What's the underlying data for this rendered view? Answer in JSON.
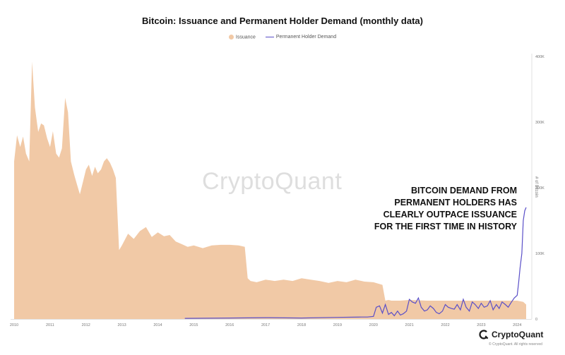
{
  "chart_data": {
    "type": "area",
    "title": "Bitcoin: Issuance and Permanent Holder Demand (monthly data)",
    "ylabel": "# of Bitcoin",
    "ylim": [
      0,
      400000
    ],
    "xlim": [
      2010.0,
      2024.25
    ],
    "yticks": [
      {
        "value": 0,
        "label": "0"
      },
      {
        "value": 100000,
        "label": "100K"
      },
      {
        "value": 200000,
        "label": "200K"
      },
      {
        "value": 300000,
        "label": "300K"
      },
      {
        "value": 400000,
        "label": "400K"
      }
    ],
    "xticks": [
      {
        "value": 2010,
        "label": "2010"
      },
      {
        "value": 2011,
        "label": "2011"
      },
      {
        "value": 2012,
        "label": "2012"
      },
      {
        "value": 2013,
        "label": "2013"
      },
      {
        "value": 2014,
        "label": "2014"
      },
      {
        "value": 2015,
        "label": "2015"
      },
      {
        "value": 2016,
        "label": "2016"
      },
      {
        "value": 2017,
        "label": "2017"
      },
      {
        "value": 2018,
        "label": "2018"
      },
      {
        "value": 2019,
        "label": "2019"
      },
      {
        "value": 2020,
        "label": "2020"
      },
      {
        "value": 2021,
        "label": "2021"
      },
      {
        "value": 2022,
        "label": "2022"
      },
      {
        "value": 2023,
        "label": "2023"
      },
      {
        "value": 2024,
        "label": "2024"
      }
    ],
    "grid": false,
    "legend_position": "top-center",
    "series": [
      {
        "name": "Issuance",
        "kind": "area",
        "color": "#f1c9a6",
        "x": [
          2010.0,
          2010.08,
          2010.17,
          2010.25,
          2010.33,
          2010.42,
          2010.5,
          2010.58,
          2010.67,
          2010.75,
          2010.83,
          2010.92,
          2011.0,
          2011.08,
          2011.17,
          2011.25,
          2011.33,
          2011.42,
          2011.5,
          2011.58,
          2011.67,
          2011.75,
          2011.83,
          2011.92,
          2012.0,
          2012.08,
          2012.17,
          2012.25,
          2012.33,
          2012.42,
          2012.5,
          2012.58,
          2012.67,
          2012.75,
          2012.83,
          2012.92,
          2013.0,
          2013.17,
          2013.33,
          2013.5,
          2013.67,
          2013.83,
          2014.0,
          2014.17,
          2014.33,
          2014.5,
          2014.67,
          2014.83,
          2015.0,
          2015.25,
          2015.5,
          2015.75,
          2016.0,
          2016.25,
          2016.42,
          2016.5,
          2016.58,
          2016.75,
          2017.0,
          2017.25,
          2017.5,
          2017.75,
          2018.0,
          2018.25,
          2018.5,
          2018.75,
          2019.0,
          2019.25,
          2019.5,
          2019.75,
          2020.0,
          2020.25,
          2020.33,
          2020.42,
          2020.5,
          2020.75,
          2021.0,
          2021.5,
          2022.0,
          2022.5,
          2023.0,
          2023.5,
          2024.0,
          2024.17,
          2024.25
        ],
        "values": [
          240000,
          280000,
          262000,
          278000,
          252000,
          240000,
          392000,
          322000,
          285000,
          298000,
          295000,
          275000,
          262000,
          286000,
          252000,
          246000,
          260000,
          337000,
          315000,
          240000,
          220000,
          205000,
          190000,
          210000,
          228000,
          235000,
          218000,
          232000,
          222000,
          228000,
          240000,
          245000,
          238000,
          228000,
          215000,
          105000,
          112000,
          130000,
          122000,
          134000,
          140000,
          125000,
          132000,
          126000,
          128000,
          118000,
          114000,
          110000,
          112000,
          108000,
          112000,
          113000,
          113000,
          112000,
          110000,
          62000,
          58000,
          56000,
          60000,
          58000,
          60000,
          58000,
          62000,
          60000,
          58000,
          55000,
          58000,
          56000,
          60000,
          57000,
          56000,
          52000,
          28000,
          29000,
          28000,
          28000,
          29000,
          28000,
          28000,
          28000,
          28000,
          28000,
          28000,
          26000,
          22000
        ]
      },
      {
        "name": "Permanent Holder Demand",
        "kind": "line",
        "color": "#5a4fc8",
        "x": [
          2014.75,
          2016.0,
          2017.0,
          2018.0,
          2019.0,
          2019.67,
          2019.83,
          2020.0,
          2020.08,
          2020.17,
          2020.25,
          2020.33,
          2020.42,
          2020.5,
          2020.58,
          2020.67,
          2020.75,
          2020.83,
          2020.92,
          2021.0,
          2021.08,
          2021.17,
          2021.25,
          2021.33,
          2021.42,
          2021.5,
          2021.58,
          2021.67,
          2021.75,
          2021.83,
          2021.92,
          2022.0,
          2022.08,
          2022.17,
          2022.25,
          2022.33,
          2022.42,
          2022.5,
          2022.58,
          2022.67,
          2022.75,
          2022.83,
          2022.92,
          2023.0,
          2023.08,
          2023.17,
          2023.25,
          2023.33,
          2023.42,
          2023.5,
          2023.58,
          2023.67,
          2023.75,
          2023.83,
          2023.92,
          2024.0,
          2024.04,
          2024.08,
          2024.13,
          2024.17,
          2024.21,
          2024.25
        ],
        "values": [
          1000,
          1500,
          2000,
          1500,
          2500,
          3000,
          3000,
          4000,
          18000,
          20000,
          9000,
          22000,
          7000,
          10000,
          5000,
          12000,
          6000,
          8000,
          12000,
          30000,
          26000,
          24000,
          32000,
          18000,
          12000,
          14000,
          20000,
          16000,
          10000,
          8000,
          12000,
          22000,
          18000,
          16000,
          15000,
          22000,
          14000,
          30000,
          18000,
          12000,
          26000,
          22000,
          16000,
          24000,
          18000,
          20000,
          28000,
          14000,
          22000,
          16000,
          26000,
          22000,
          18000,
          25000,
          32000,
          36000,
          55000,
          78000,
          100000,
          150000,
          165000,
          170000
        ]
      }
    ]
  },
  "annotation": "BITCOIN DEMAND FROM\nPERMANENT HOLDERS HAS\nCLEARLY OUTPACE ISSUANCE\nFOR THE FIRST TIME IN HISTORY",
  "watermark": "CryptoQuant",
  "brand": {
    "name": "CryptoQuant",
    "copyright": "© CryptoQuant. All rights reserved",
    "logo_icon": "cryptoquant-logo-icon"
  }
}
